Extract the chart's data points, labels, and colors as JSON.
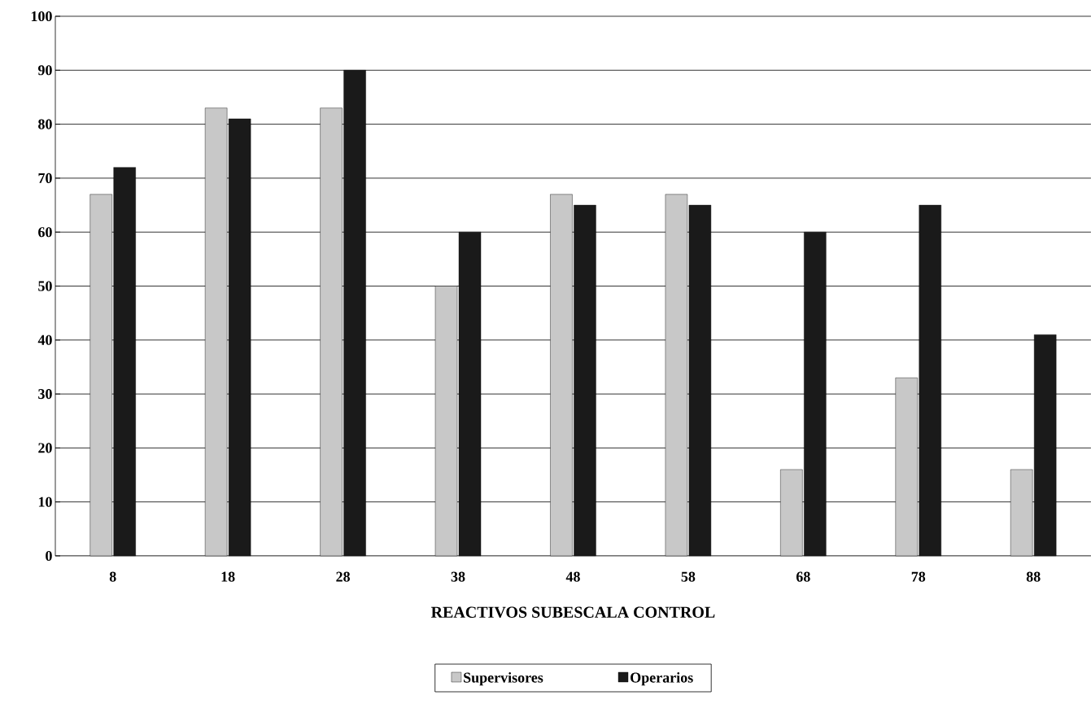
{
  "chart_data": {
    "type": "bar",
    "xlabel": "REACTIVOS SUBESCALA CONTROL",
    "categories": [
      "8",
      "18",
      "28",
      "38",
      "48",
      "58",
      "68",
      "78",
      "88"
    ],
    "series": [
      {
        "name": "Supervisores",
        "color": "#c8c8c8",
        "values": [
          67,
          83,
          83,
          50,
          67,
          67,
          16,
          33,
          16
        ]
      },
      {
        "name": "Operarios",
        "color": "#1a1a1a",
        "values": [
          72,
          81,
          90,
          60,
          65,
          65,
          60,
          65,
          41
        ]
      }
    ],
    "ylim": [
      0,
      100
    ],
    "yticks": [
      0,
      10,
      20,
      30,
      40,
      50,
      60,
      70,
      80,
      90,
      100
    ],
    "grid": "y",
    "legend": "bottom"
  }
}
